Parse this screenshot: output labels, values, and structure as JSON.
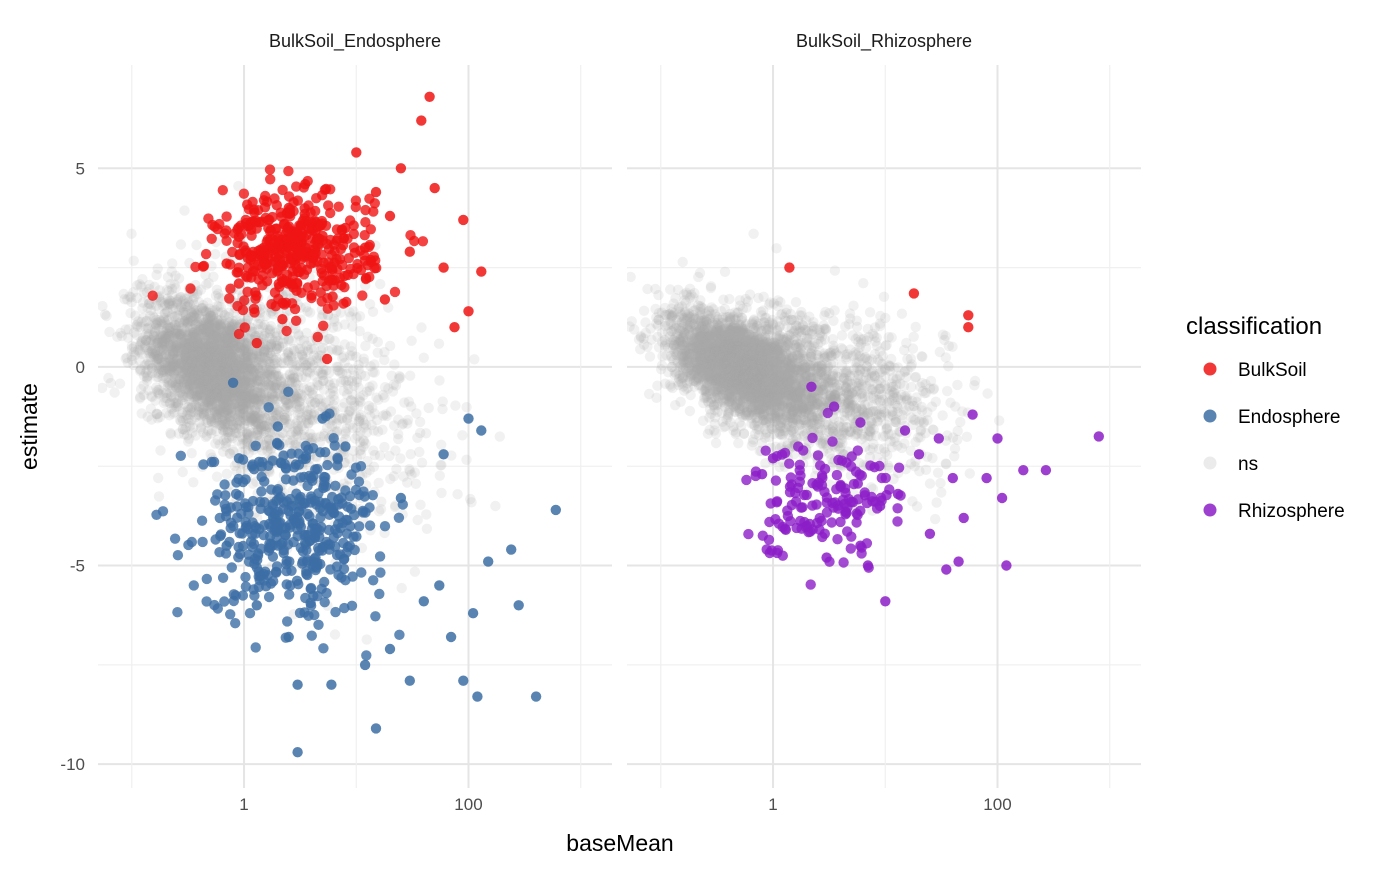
{
  "chart_data": {
    "type": "scatter",
    "xlabel": "baseMean",
    "ylabel": "estimate",
    "x_scale": "log10",
    "xlim": [
      0.05,
      1900
    ],
    "ylim": [
      -10.6,
      7.6
    ],
    "x_ticks": [
      {
        "value": 1,
        "label": "1"
      },
      {
        "value": 100,
        "label": "100"
      }
    ],
    "x_minor_ticks": [
      0.1,
      10,
      1000
    ],
    "y_ticks": [
      {
        "value": 5,
        "label": "5"
      },
      {
        "value": 0,
        "label": "0"
      },
      {
        "value": -5,
        "label": "-5"
      },
      {
        "value": -10,
        "label": "-10"
      }
    ],
    "y_minor_ticks": [
      2.5,
      -2.5,
      -7.5
    ],
    "grid": true,
    "legend": {
      "title": "classification",
      "position": "right",
      "entries": [
        {
          "label": "BulkSoil",
          "color": "#F01414"
        },
        {
          "label": "Endosphere",
          "color": "#3C6EA5"
        },
        {
          "label": "ns",
          "color": "#C8C8C8"
        },
        {
          "label": "Rhizosphere",
          "color": "#8C1EC8"
        }
      ]
    },
    "panels": [
      {
        "title": "BulkSoil_Endosphere",
        "background": {
          "label": "ns",
          "clusters": [
            {
              "n": 2500,
              "x_log_mean": -0.3,
              "x_log_sd": 0.3,
              "slope": -1.2,
              "y_sd": 0.8
            },
            {
              "n": 900,
              "x_log_mean": 0.35,
              "x_log_sd": 0.45,
              "slope": -1.0,
              "y_sd": 1.6
            },
            {
              "n": 200,
              "x_log_mean": 1.1,
              "x_log_sd": 0.45,
              "slope": -0.8,
              "y_sd": 1.3
            }
          ]
        },
        "series": [
          {
            "name": "BulkSoil",
            "points": [
              [
                2.0,
                2.5
              ],
              [
                1.5,
                3.0
              ],
              [
                3.0,
                2.8
              ],
              [
                5.0,
                3.3
              ],
              [
                1.2,
                2.4
              ],
              [
                0.9,
                2.1
              ],
              [
                2.5,
                4.0
              ],
              [
                8.0,
                3.5
              ],
              [
                12.0,
                3.0
              ],
              [
                20.0,
                3.8
              ],
              [
                25.0,
                5.0
              ],
              [
                45.0,
                6.8
              ],
              [
                38.0,
                6.2
              ],
              [
                10.0,
                5.4
              ],
              [
                50.0,
                4.5
              ],
              [
                60.0,
                2.5
              ],
              [
                90.0,
                3.7
              ],
              [
                100.0,
                1.4
              ],
              [
                130.0,
                2.4
              ],
              [
                75.0,
                1.0
              ],
              [
                5.5,
                0.2
              ],
              [
                1.3,
                0.6
              ],
              [
                0.7,
                2.6
              ],
              [
                3.5,
                4.6
              ],
              [
                15.0,
                4.4
              ],
              [
                4.0,
                1.8
              ],
              [
                2.2,
                1.2
              ],
              [
                6.0,
                2.2
              ],
              [
                30.0,
                2.9
              ],
              [
                18.0,
                1.7
              ]
            ],
            "extra_points": {
              "n": 400,
              "x_log_mean": 0.45,
              "x_log_sd": 0.35,
              "y_mean": 2.9,
              "y_sd": 0.75
            }
          },
          {
            "name": "Endosphere",
            "points": [
              [
                3.0,
                -9.7
              ],
              [
                15.0,
                -9.1
              ],
              [
                3.0,
                -8.0
              ],
              [
                30.0,
                -7.9
              ],
              [
                400.0,
                -8.3
              ],
              [
                600.0,
                -3.6
              ],
              [
                280.0,
                -6.0
              ],
              [
                120.0,
                -8.3
              ],
              [
                90.0,
                -7.9
              ],
              [
                70.0,
                -6.8
              ],
              [
                12.0,
                -7.5
              ],
              [
                20.0,
                -7.1
              ],
              [
                100.0,
                -1.3
              ],
              [
                130.0,
                -1.6
              ],
              [
                240.0,
                -4.6
              ],
              [
                150.0,
                -4.9
              ],
              [
                110.0,
                -6.2
              ],
              [
                40.0,
                -5.9
              ],
              [
                55.0,
                -5.5
              ],
              [
                0.9,
                -2.3
              ],
              [
                0.8,
                -0.4
              ],
              [
                2.0,
                -1.5
              ],
              [
                5.0,
                -1.3
              ],
              [
                8.0,
                -2.0
              ],
              [
                25.0,
                -3.3
              ],
              [
                60.0,
                -2.2
              ],
              [
                6.0,
                -8.0
              ],
              [
                0.7,
                -4.5
              ],
              [
                1.3,
                -6.0
              ],
              [
                2.5,
                -6.8
              ]
            ],
            "extra_points": {
              "n": 420,
              "x_log_mean": 0.45,
              "x_log_sd": 0.4,
              "y_mean": -4.0,
              "y_sd": 1.1
            }
          }
        ]
      },
      {
        "title": "BulkSoil_Rhizosphere",
        "background": {
          "label": "ns",
          "clusters": [
            {
              "n": 2800,
              "x_log_mean": -0.3,
              "x_log_sd": 0.3,
              "slope": -1.0,
              "y_sd": 0.6
            },
            {
              "n": 1100,
              "x_log_mean": 0.35,
              "x_log_sd": 0.45,
              "slope": -0.9,
              "y_sd": 0.9
            },
            {
              "n": 250,
              "x_log_mean": 1.0,
              "x_log_sd": 0.45,
              "slope": -0.6,
              "y_sd": 1.0
            }
          ]
        },
        "series": [
          {
            "name": "BulkSoil",
            "points": [
              [
                1.4,
                2.5
              ],
              [
                18.0,
                1.85
              ],
              [
                55.0,
                1.3
              ],
              [
                55.0,
                1.0
              ]
            ]
          },
          {
            "name": "Rhizosphere",
            "points": [
              [
                2.2,
                -0.5
              ],
              [
                3.5,
                -1.0
              ],
              [
                6.0,
                -1.4
              ],
              [
                15.0,
                -1.6
              ],
              [
                30.0,
                -1.8
              ],
              [
                60.0,
                -1.2
              ],
              [
                100.0,
                -1.8
              ],
              [
                800.0,
                -1.75
              ],
              [
                170.0,
                -2.6
              ],
              [
                270.0,
                -2.6
              ],
              [
                110.0,
                -3.3
              ],
              [
                120.0,
                -5.0
              ],
              [
                45.0,
                -4.9
              ],
              [
                35.0,
                -5.1
              ],
              [
                10.0,
                -5.9
              ],
              [
                7.0,
                -5.0
              ],
              [
                3.0,
                -4.8
              ],
              [
                1.3,
                -4.1
              ],
              [
                0.8,
                -2.7
              ],
              [
                1.0,
                -2.3
              ],
              [
                4.0,
                -3.0
              ],
              [
                9.0,
                -3.5
              ],
              [
                20.0,
                -2.2
              ],
              [
                50.0,
                -3.8
              ],
              [
                80.0,
                -2.8
              ],
              [
                2.0,
                -4.0
              ],
              [
                6.0,
                -4.5
              ],
              [
                13.0,
                -3.2
              ],
              [
                25.0,
                -4.2
              ],
              [
                40.0,
                -2.8
              ]
            ],
            "extra_points": {
              "n": 150,
              "x_log_mean": 0.45,
              "x_log_sd": 0.35,
              "y_mean": -3.2,
              "y_sd": 0.75
            }
          }
        ]
      }
    ]
  }
}
